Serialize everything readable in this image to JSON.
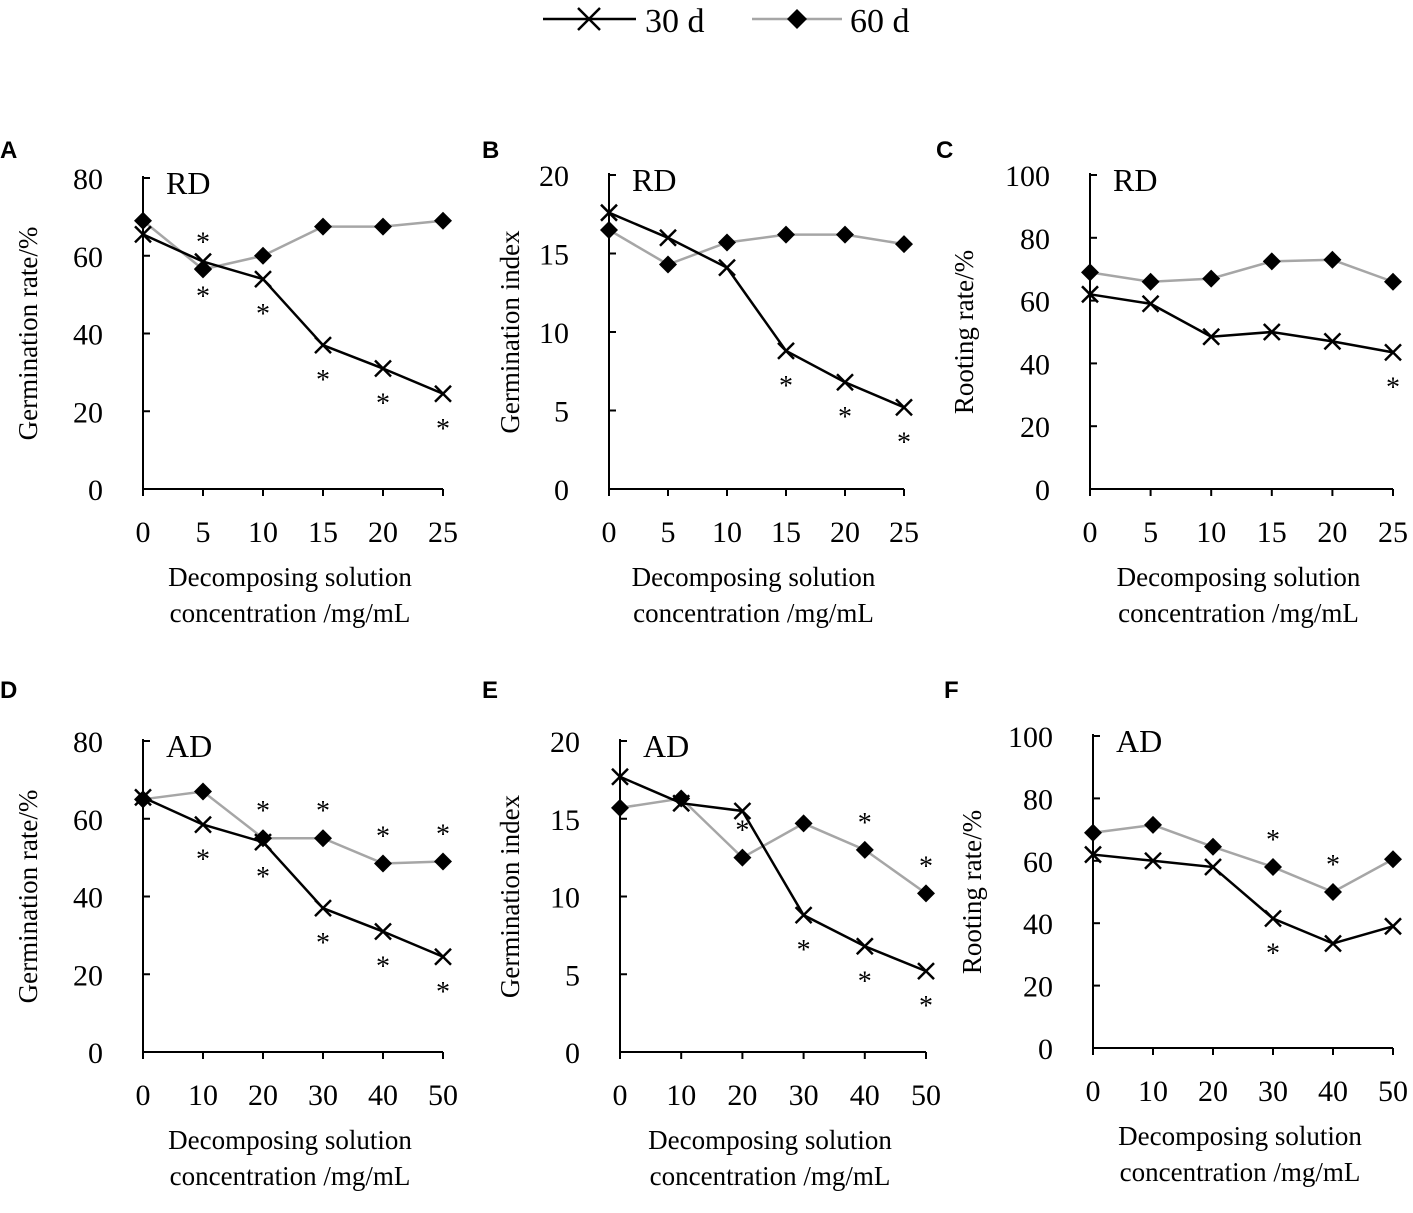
{
  "legend": {
    "items": [
      {
        "label": "30 d",
        "color": "#000000",
        "marker": "x-cross-icon"
      },
      {
        "label": "60 d",
        "color": "#a6a6a6",
        "marker": "diamond-icon"
      }
    ]
  },
  "chart_data": [
    {
      "panel": "A",
      "type": "line",
      "tag": "RD",
      "ylabel": "Germination rate/%",
      "xlabel_line1": "Decomposing solution",
      "xlabel_line2": "concentration /mg/mL",
      "x": [
        0,
        5,
        10,
        15,
        20,
        25
      ],
      "xticks": [
        "0",
        "5",
        "10",
        "15",
        "20",
        "25"
      ],
      "ylim": [
        0,
        80
      ],
      "yticks": [
        "0",
        "20",
        "40",
        "60",
        "80"
      ],
      "series": [
        {
          "name": "30 d",
          "values": [
            65.5,
            58.5,
            54,
            37,
            31,
            24.5
          ],
          "stars": [
            false,
            true,
            true,
            true,
            true,
            true
          ]
        },
        {
          "name": "60 d",
          "values": [
            69,
            56.5,
            60,
            67.5,
            67.5,
            69
          ],
          "stars": [
            false,
            true,
            false,
            false,
            false,
            false
          ]
        }
      ]
    },
    {
      "panel": "B",
      "type": "line",
      "tag": "RD",
      "ylabel": "Germination index",
      "xlabel_line1": "Decomposing solution",
      "xlabel_line2": "concentration /mg/mL",
      "x": [
        0,
        5,
        10,
        15,
        20,
        25
      ],
      "xticks": [
        "0",
        "5",
        "10",
        "15",
        "20",
        "25"
      ],
      "ylim": [
        0,
        20
      ],
      "yticks": [
        "0",
        "5",
        "10",
        "15",
        "20"
      ],
      "series": [
        {
          "name": "30 d",
          "values": [
            17.6,
            16,
            14.1,
            8.8,
            6.8,
            5.2
          ],
          "stars": [
            false,
            false,
            false,
            true,
            true,
            true
          ]
        },
        {
          "name": "60 d",
          "values": [
            16.5,
            14.3,
            15.7,
            16.2,
            16.2,
            15.6
          ],
          "stars": [
            false,
            false,
            false,
            false,
            false,
            false
          ]
        }
      ]
    },
    {
      "panel": "C",
      "type": "line",
      "tag": "RD",
      "ylabel": "Rooting rate/%",
      "xlabel_line1": "Decomposing solution",
      "xlabel_line2": "concentration /mg/mL",
      "x": [
        0,
        5,
        10,
        15,
        20,
        25
      ],
      "xticks": [
        "0",
        "5",
        "10",
        "15",
        "20",
        "25"
      ],
      "ylim": [
        0,
        100
      ],
      "yticks": [
        "0",
        "20",
        "40",
        "60",
        "80",
        "100"
      ],
      "series": [
        {
          "name": "30 d",
          "values": [
            62,
            59,
            48.5,
            50,
            47,
            43.5
          ],
          "stars": [
            false,
            false,
            false,
            false,
            false,
            true
          ]
        },
        {
          "name": "60 d",
          "values": [
            69,
            66,
            67,
            72.5,
            73,
            66
          ],
          "stars": [
            false,
            false,
            false,
            false,
            false,
            false
          ]
        }
      ]
    },
    {
      "panel": "D",
      "type": "line",
      "tag": "AD",
      "ylabel": "Germination rate/%",
      "xlabel_line1": "Decomposing solution",
      "xlabel_line2": "concentration /mg/mL",
      "x": [
        0,
        10,
        20,
        30,
        40,
        50
      ],
      "xticks": [
        "0",
        "10",
        "20",
        "30",
        "40",
        "50"
      ],
      "ylim": [
        0,
        80
      ],
      "yticks": [
        "0",
        "20",
        "40",
        "60",
        "80"
      ],
      "series": [
        {
          "name": "30 d",
          "values": [
            65.5,
            58.5,
            54,
            37,
            31,
            24.5
          ],
          "stars": [
            false,
            true,
            true,
            true,
            true,
            true
          ]
        },
        {
          "name": "60 d",
          "values": [
            65,
            67,
            55,
            55,
            48.5,
            49
          ],
          "stars": [
            false,
            false,
            true,
            true,
            true,
            true
          ]
        }
      ]
    },
    {
      "panel": "E",
      "type": "line",
      "tag": "AD",
      "ylabel": "Germination index",
      "xlabel_line1": "Decomposing solution",
      "xlabel_line2": "concentration /mg/mL",
      "x": [
        0,
        10,
        20,
        30,
        40,
        50
      ],
      "xticks": [
        "0",
        "10",
        "20",
        "30",
        "40",
        "50"
      ],
      "ylim": [
        0,
        20
      ],
      "yticks": [
        "0",
        "5",
        "10",
        "15",
        "20"
      ],
      "series": [
        {
          "name": "30 d",
          "values": [
            17.7,
            16,
            15.5,
            8.8,
            6.8,
            5.2
          ],
          "stars": [
            false,
            false,
            false,
            true,
            true,
            true
          ]
        },
        {
          "name": "60 d",
          "values": [
            15.7,
            16.3,
            12.5,
            14.7,
            13,
            10.2
          ],
          "stars": [
            false,
            false,
            true,
            false,
            true,
            true
          ]
        }
      ]
    },
    {
      "panel": "F",
      "type": "line",
      "tag": "AD",
      "ylabel": "Rooting rate/%",
      "xlabel_line1": "Decomposing solution",
      "xlabel_line2": "concentration /mg/mL",
      "x": [
        0,
        10,
        20,
        30,
        40,
        50
      ],
      "xticks": [
        "0",
        "10",
        "20",
        "30",
        "40",
        "50"
      ],
      "ylim": [
        0,
        100
      ],
      "yticks": [
        "0",
        "20",
        "40",
        "60",
        "80",
        "100"
      ],
      "series": [
        {
          "name": "30 d",
          "values": [
            62,
            60,
            58,
            41.5,
            33.5,
            39
          ],
          "stars": [
            false,
            false,
            false,
            true,
            false,
            false
          ]
        },
        {
          "name": "60 d",
          "values": [
            69,
            71.5,
            64.5,
            58,
            50,
            60.5
          ],
          "stars": [
            false,
            false,
            false,
            true,
            true,
            false
          ]
        }
      ]
    }
  ]
}
